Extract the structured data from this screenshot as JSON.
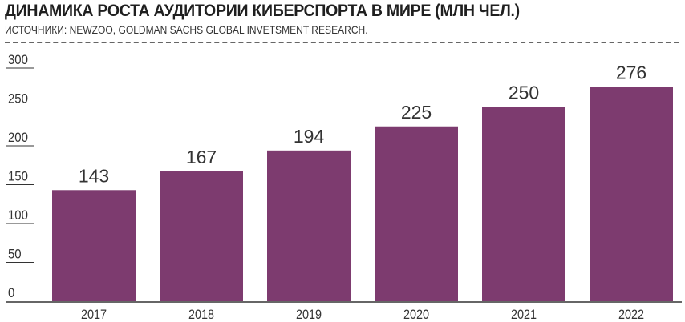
{
  "chart_data": {
    "type": "bar",
    "title": "ДИНАМИКА РОСТА АУДИТОРИИ КИБЕРСПОРТА В МИРЕ (МЛН ЧЕЛ.)",
    "subtitle": "ИСТОЧНИКИ: NEWZOO, GOLDMAN SACHS GLOBAL INVETSMENT RESEARCH.",
    "categories": [
      "2017",
      "2018",
      "2019",
      "2020",
      "2021",
      "2022"
    ],
    "values": [
      143,
      167,
      194,
      225,
      250,
      276
    ],
    "data_labels": [
      "143",
      "167",
      "194",
      "225",
      "250",
      "276"
    ],
    "yticks": [
      0,
      50,
      100,
      150,
      200,
      250,
      300
    ],
    "ylim": [
      0,
      300
    ],
    "xlabel": "",
    "ylabel": "",
    "grid": false,
    "bar_color": "#7d3b6f"
  }
}
